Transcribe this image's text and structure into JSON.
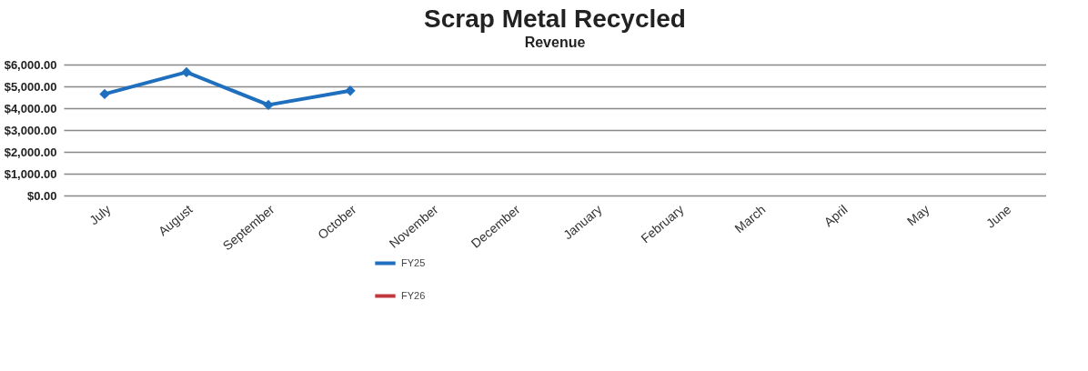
{
  "chart_data": {
    "type": "line",
    "title": "Scrap Metal Recycled",
    "subtitle": "Revenue",
    "categories": [
      "July",
      "August",
      "September",
      "October",
      "November",
      "December",
      "January",
      "February",
      "March",
      "April",
      "May",
      "June"
    ],
    "series": [
      {
        "name": "FY25",
        "color": "#1f6fbf",
        "marker": "diamond",
        "values": [
          4650,
          5650,
          4150,
          4800,
          null,
          null,
          null,
          null,
          null,
          null,
          null,
          null
        ]
      },
      {
        "name": "FY26",
        "color": "#c0393f",
        "marker": "square",
        "values": [
          null,
          null,
          null,
          null,
          null,
          null,
          null,
          null,
          null,
          null,
          null,
          null
        ]
      }
    ],
    "ylim": [
      0,
      6000
    ],
    "yticks": [
      {
        "value": 0,
        "label": "$0.00"
      },
      {
        "value": 1000,
        "label": "$1,000.00"
      },
      {
        "value": 2000,
        "label": "$2,000.00"
      },
      {
        "value": 3000,
        "label": "$3,000.00"
      },
      {
        "value": 4000,
        "label": "$4,000.00"
      },
      {
        "value": 5000,
        "label": "$5,000.00"
      },
      {
        "value": 6000,
        "label": "$6,000.00"
      }
    ],
    "grid": "y",
    "legend": "bottom"
  }
}
